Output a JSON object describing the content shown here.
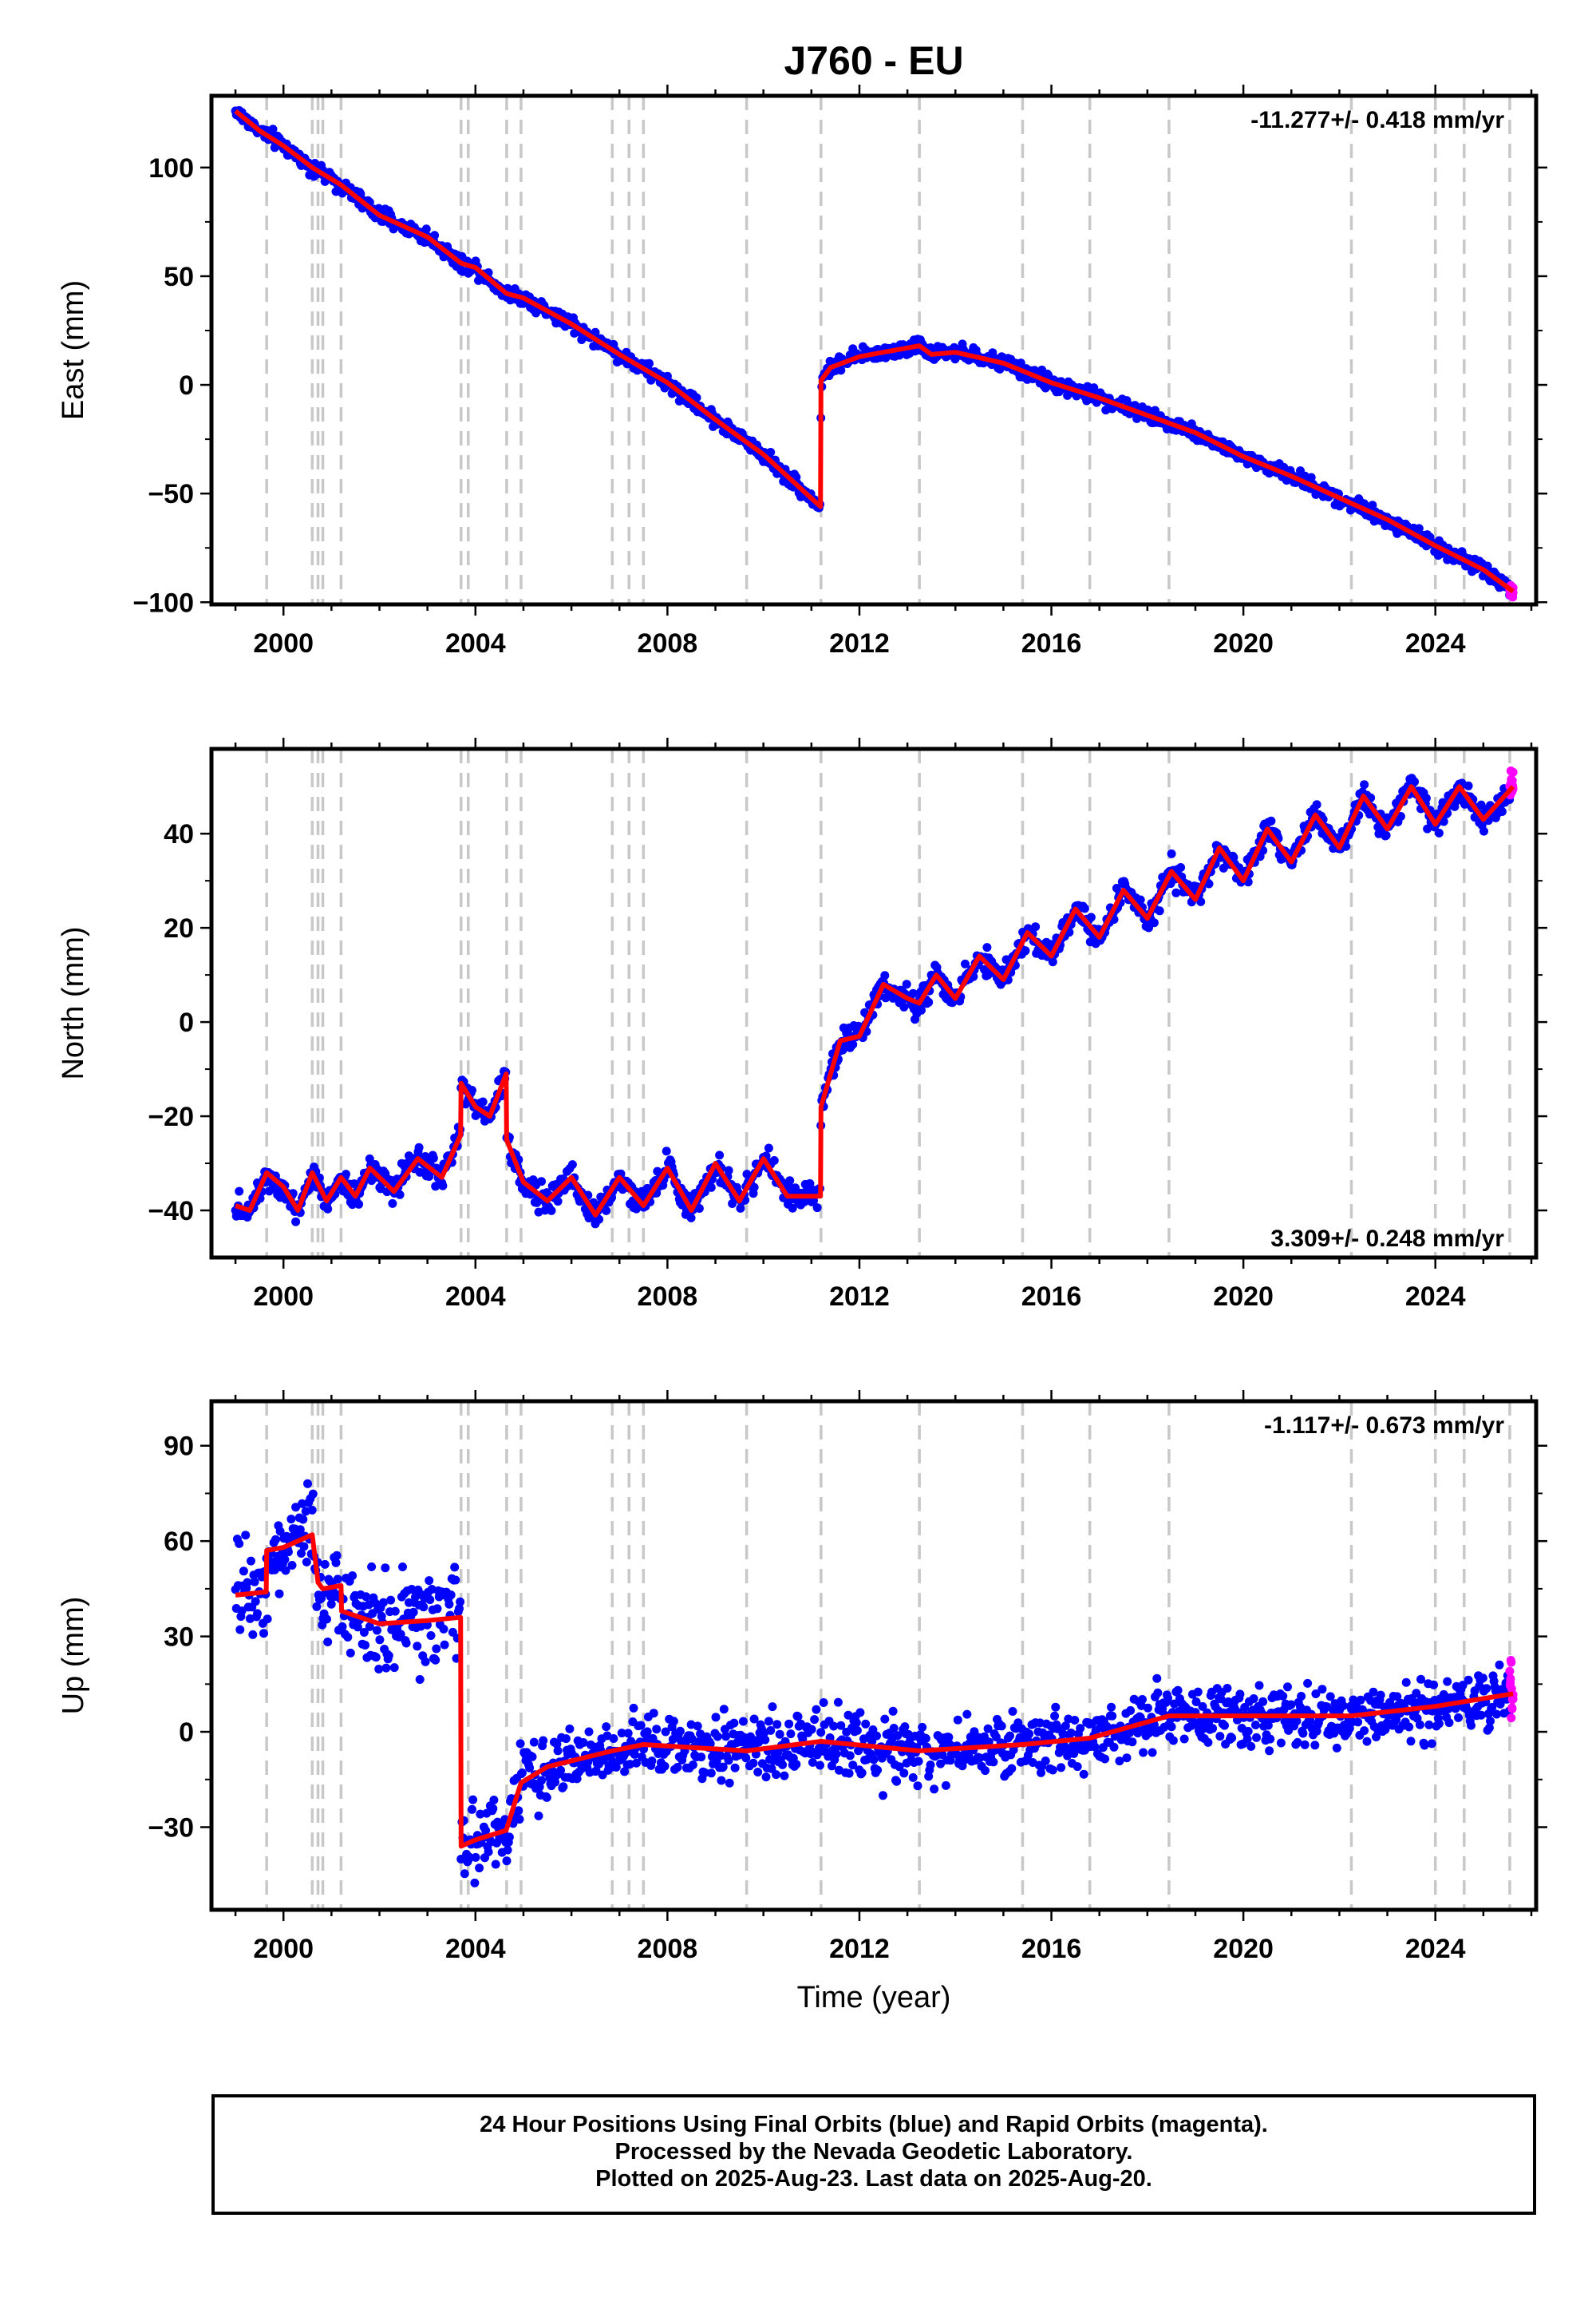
{
  "figure": {
    "title": "J760 - EU",
    "xlabel": "Time (year)",
    "caption": [
      "24 Hour Positions Using Final Orbits (blue) and Rapid Orbits (magenta).",
      "Processed by the Nevada Geodetic Laboratory.",
      "Plotted on 2025-Aug-23. Last data on 2025-Aug-20."
    ],
    "colors": {
      "final": "#0000ff",
      "rapid": "#ff00ff",
      "model": "#ff0000",
      "event": "#c8c8c8"
    },
    "event_lines": [
      1999.65,
      2000.6,
      2000.72,
      2000.82,
      2001.2,
      2003.7,
      2003.85,
      2004.65,
      2004.95,
      2006.85,
      2007.2,
      2007.5,
      2009.65,
      2011.2,
      2013.25,
      2015.4,
      2016.8,
      2018.45,
      2022.25,
      2024.0,
      2024.6,
      2025.55
    ]
  },
  "chart_data": [
    {
      "type": "scatter",
      "ylabel": "East (mm)",
      "rate_label": "-11.277+/- 0.418 mm/yr",
      "rate_position": "top-right",
      "xlim": [
        1998.5,
        2026.1
      ],
      "ylim": [
        -101,
        133
      ],
      "xticks": [
        2000,
        2004,
        2008,
        2012,
        2016,
        2020,
        2024
      ],
      "xtick_labels": [
        "2000",
        "2004",
        "2008",
        "2012",
        "2016",
        "2020",
        "2024"
      ],
      "yticks": [
        -100,
        -50,
        0,
        50,
        100
      ],
      "ytick_labels": [
        "−100",
        "−50",
        "0",
        "50",
        "100"
      ],
      "scatter_noise": 2.5,
      "rapid_from": 2025.55,
      "series": [
        {
          "role": "model",
          "x": [
            1999.0,
            1999.5,
            2000.0,
            2000.6,
            2001.2,
            2002.0,
            2003.0,
            2003.7,
            2004.0,
            2004.65,
            2005.0,
            2006.0,
            2007.0,
            2008.0,
            2009.0,
            2010.0,
            2011.19,
            2011.2,
            2011.4,
            2012.0,
            2012.5,
            2013.25,
            2013.5,
            2014.0,
            2015.0,
            2016.0,
            2017.0,
            2018.0,
            2019.0,
            2020.0,
            2021.0,
            2022.0,
            2023.0,
            2024.0,
            2025.0,
            2025.62
          ],
          "y": [
            126,
            117,
            110,
            100,
            92,
            78,
            68,
            56,
            54,
            42,
            40,
            28,
            14,
            1,
            -16,
            -32,
            -56,
            2,
            8,
            13,
            15,
            18,
            14,
            15,
            10,
            1,
            -6,
            -14,
            -22,
            -33,
            -42,
            -52,
            -62,
            -74,
            -85,
            -95
          ]
        }
      ]
    },
    {
      "type": "scatter",
      "ylabel": "North (mm)",
      "rate_label": "3.309+/- 0.248 mm/yr",
      "rate_position": "bottom-right",
      "xlim": [
        1998.5,
        2026.1
      ],
      "ylim": [
        -50,
        58
      ],
      "xticks": [
        2000,
        2004,
        2008,
        2012,
        2016,
        2020,
        2024
      ],
      "xtick_labels": [
        "2000",
        "2004",
        "2008",
        "2012",
        "2016",
        "2020",
        "2024"
      ],
      "yticks": [
        -40,
        -20,
        0,
        20,
        40
      ],
      "ytick_labels": [
        "−40",
        "−20",
        "0",
        "20",
        "40"
      ],
      "scatter_noise": 2.0,
      "rapid_from": 2025.55,
      "series": [
        {
          "role": "model",
          "x": [
            1999.0,
            1999.3,
            1999.65,
            2000.0,
            2000.3,
            2000.6,
            2000.9,
            2001.2,
            2001.5,
            2001.8,
            2002.3,
            2002.8,
            2003.3,
            2003.69,
            2003.7,
            2004.0,
            2004.3,
            2004.64,
            2004.65,
            2005.0,
            2005.5,
            2006.0,
            2006.5,
            2007.0,
            2007.5,
            2008.0,
            2008.5,
            2009.0,
            2009.5,
            2010.0,
            2010.5,
            2011.19,
            2011.2,
            2011.6,
            2012.0,
            2012.5,
            2013.0,
            2013.25,
            2013.6,
            2014.0,
            2014.5,
            2015.0,
            2015.5,
            2016.0,
            2016.5,
            2017.0,
            2017.5,
            2018.0,
            2018.5,
            2019.0,
            2019.5,
            2020.0,
            2020.5,
            2021.0,
            2021.5,
            2022.0,
            2022.5,
            2023.0,
            2023.5,
            2024.0,
            2024.5,
            2025.0,
            2025.62
          ],
          "y": [
            -39,
            -40,
            -32,
            -35,
            -40,
            -32,
            -38,
            -33,
            -37,
            -31,
            -36,
            -29,
            -33,
            -24,
            -13,
            -18,
            -20,
            -11,
            -25,
            -34,
            -38,
            -33,
            -41,
            -33,
            -39,
            -31,
            -40,
            -30,
            -38,
            -29,
            -37,
            -37,
            -18,
            -4,
            -3,
            8,
            5,
            4,
            10,
            5,
            14,
            9,
            19,
            14,
            24,
            18,
            28,
            22,
            32,
            26,
            37,
            30,
            41,
            34,
            44,
            37,
            48,
            41,
            50,
            42,
            50,
            43,
            50
          ]
        }
      ]
    },
    {
      "type": "scatter",
      "ylabel": "Up (mm)",
      "rate_label": "-1.117+/- 0.673 mm/yr",
      "rate_position": "top-right",
      "xlim": [
        1998.5,
        2026.1
      ],
      "ylim": [
        -56,
        104
      ],
      "xticks": [
        2000,
        2004,
        2008,
        2012,
        2016,
        2020,
        2024
      ],
      "xtick_labels": [
        "2000",
        "2004",
        "2008",
        "2012",
        "2016",
        "2020",
        "2024"
      ],
      "yticks": [
        -30,
        0,
        30,
        60,
        90
      ],
      "ytick_labels": [
        "−30",
        "0",
        "30",
        "60",
        "90"
      ],
      "scatter_noise": 7.0,
      "rapid_from": 2025.55,
      "series": [
        {
          "role": "model",
          "x": [
            1999.0,
            1999.64,
            1999.65,
            2000.0,
            2000.6,
            2000.72,
            2000.82,
            2001.2,
            2001.21,
            2002.0,
            2003.0,
            2003.69,
            2003.7,
            2004.0,
            2004.64,
            2004.95,
            2005.5,
            2006.85,
            2007.5,
            2009.65,
            2011.2,
            2013.25,
            2015.4,
            2016.8,
            2018.45,
            2022.25,
            2024.0,
            2025.62
          ],
          "y": [
            43,
            44,
            57,
            58,
            62,
            47,
            45,
            46,
            38,
            34,
            35,
            36,
            -36,
            -34,
            -31,
            -16,
            -11,
            -6,
            -4,
            -6,
            -3,
            -6,
            -4,
            -2,
            5,
            5,
            8,
            12
          ]
        }
      ]
    }
  ]
}
